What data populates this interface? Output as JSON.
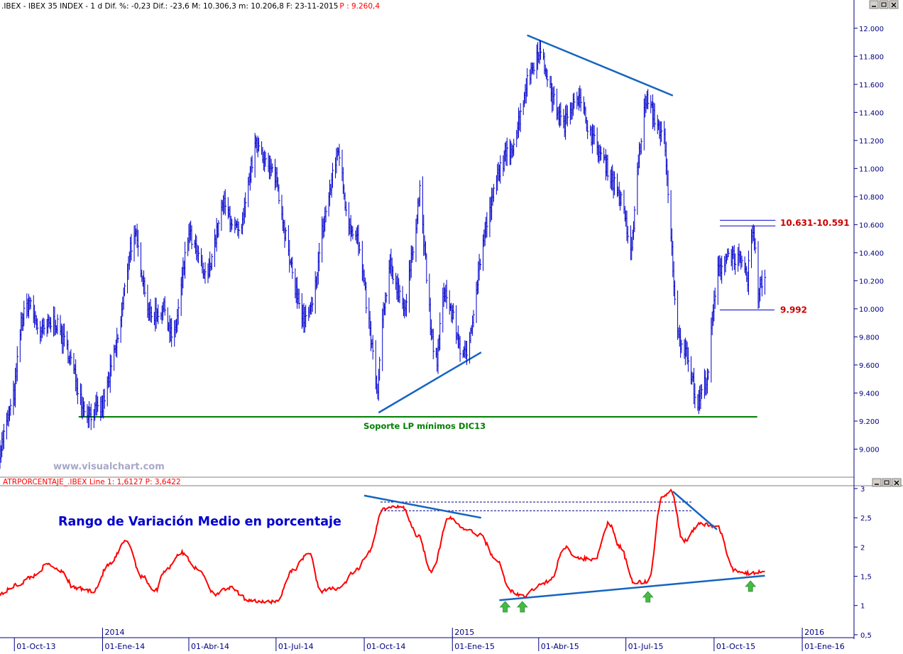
{
  "header": {
    "price_info": ".IBEX - IBEX 35 INDEX - 1 d  Dif. %: -0,23  Dif.: -23,6  M: 10.306,3  m: 10.206,8  F: 23-11-2015 ",
    "price_last": "P : 9.260,4",
    "atr_info": "ATRPORCENTAJE_.IBEX Line 1: 1,6127  P: 3,6422"
  },
  "watermark": "www.visualchart.com",
  "window_buttons": [
    "minimize-icon",
    "restore-icon",
    "close-icon"
  ],
  "colors": {
    "price": "#0000cc",
    "atr": "#ff0000",
    "trend": "#1565c0",
    "support": "#008000",
    "label_red": "#cc0000",
    "axis": "#000080"
  },
  "chart_data": [
    {
      "type": "line",
      "title": "IBEX 35 INDEX - 1 d",
      "ylim": [
        8800,
        12100
      ],
      "ytick_labels": [
        "9.000",
        "9.200",
        "9.400",
        "9.600",
        "9.800",
        "10.000",
        "10.200",
        "10.400",
        "10.600",
        "10.800",
        "11.000",
        "11.200",
        "11.400",
        "11.600",
        "11.800",
        "12.000"
      ],
      "ytick_values": [
        9000,
        9200,
        9400,
        9600,
        9800,
        10000,
        10200,
        10400,
        10600,
        10800,
        11000,
        11200,
        11400,
        11600,
        11800,
        12000
      ],
      "x_start": "2013-09-16",
      "x_end": "2016-02-24",
      "series": [
        {
          "x": [
            "2013-09-16",
            "2013-10-01",
            "2013-10-08",
            "2013-10-16",
            "2013-10-28",
            "2013-11-12",
            "2013-11-26",
            "2013-12-12",
            "2013-12-19",
            "2014-01-01",
            "2014-01-18",
            "2014-01-30",
            "2014-02-05",
            "2014-02-19",
            "2014-03-07",
            "2014-03-16",
            "2014-04-01",
            "2014-04-19",
            "2014-05-07",
            "2014-05-25",
            "2014-06-07",
            "2014-06-13",
            "2014-06-22",
            "2014-07-01",
            "2014-07-16",
            "2014-07-30",
            "2014-08-08",
            "2014-08-18",
            "2014-09-04",
            "2014-09-13",
            "2014-09-24",
            "2014-10-05",
            "2014-10-15",
            "2014-10-19",
            "2014-10-28",
            "2014-11-13",
            "2014-11-28",
            "2014-12-10",
            "2014-12-16",
            "2014-12-23",
            "2015-01-01",
            "2015-01-10",
            "2015-01-16",
            "2015-02-01",
            "2015-02-19",
            "2015-03-07",
            "2015-03-19",
            "2015-04-01",
            "2015-04-11",
            "2015-04-13",
            "2015-04-27",
            "2015-05-10",
            "2015-05-28",
            "2015-06-12",
            "2015-06-25",
            "2015-07-07",
            "2015-07-13",
            "2015-07-22",
            "2015-08-04",
            "2015-08-10",
            "2015-08-18",
            "2015-08-24",
            "2015-09-03",
            "2015-09-13",
            "2015-09-25",
            "2015-09-29",
            "2015-10-04",
            "2015-10-16",
            "2015-10-26",
            "2015-11-05",
            "2015-11-08",
            "2015-11-13",
            "2015-11-16",
            "2015-11-23"
          ],
          "values": [
            8990,
            9400,
            9900,
            10050,
            9820,
            9920,
            9700,
            9300,
            9250,
            9300,
            9820,
            10450,
            10500,
            9950,
            10000,
            9750,
            10550,
            10200,
            10750,
            10500,
            11100,
            11200,
            11000,
            10950,
            10300,
            9900,
            10000,
            10550,
            11150,
            10650,
            10500,
            9950,
            9380,
            9850,
            10300,
            10000,
            10850,
            9800,
            9620,
            10150,
            9950,
            9700,
            9650,
            10450,
            11000,
            11200,
            11600,
            11850,
            11650,
            11550,
            11300,
            11550,
            11200,
            11000,
            10800,
            10400,
            11000,
            11500,
            11300,
            11200,
            10400,
            9800,
            9700,
            9300,
            9550,
            9900,
            10250,
            10400,
            10350,
            10200,
            10550,
            10450,
            10100,
            10250
          ]
        }
      ],
      "annotations": [
        "10.631-10.591",
        "9.992",
        "Soporte LP mínimos DIC13"
      ],
      "level_lines": [
        10631,
        10591,
        9992
      ],
      "support_level": 9230,
      "trendlines": [
        {
          "from": [
            "2015-03-20",
            11950
          ],
          "to": [
            "2015-08-19",
            11520
          ]
        },
        {
          "from": [
            "2014-10-16",
            9260
          ],
          "to": [
            "2015-01-31",
            9690
          ]
        }
      ],
      "xtick_labels": [
        "01-Oct-13",
        "01-Ene-14",
        "01-Abr-14",
        "01-Jul-14",
        "01-Oct-14",
        "01-Ene-15",
        "01-Abr-15",
        "01-Jul-15",
        "01-Oct-15",
        "01-Ene-16"
      ],
      "xtick_values": [
        "2013-10-01",
        "2014-01-01",
        "2014-04-01",
        "2014-07-01",
        "2014-10-01",
        "2015-01-01",
        "2015-04-01",
        "2015-07-01",
        "2015-10-01",
        "2016-01-01"
      ],
      "year_labels": [
        "2014",
        "2015",
        "2016"
      ],
      "year_values": [
        "2014-01-01",
        "2015-01-01",
        "2016-01-01"
      ]
    },
    {
      "type": "line",
      "title": "ATRPORCENTAJE_.IBEX",
      "annotation": "Rango de Variación Medio en porcentaje",
      "ylim": [
        0.45,
        3.0
      ],
      "ytick_labels": [
        "0,5",
        "1",
        "1,5",
        "2",
        "2,5",
        "3"
      ],
      "ytick_values": [
        0.5,
        1,
        1.5,
        2,
        2.5,
        3
      ],
      "series": [
        {
          "name": "Line 1",
          "x": [
            "2013-09-16",
            "2013-10-04",
            "2013-10-20",
            "2013-11-05",
            "2013-11-19",
            "2013-12-02",
            "2013-12-22",
            "2014-01-08",
            "2014-01-26",
            "2014-02-11",
            "2014-02-25",
            "2014-03-07",
            "2014-03-24",
            "2014-04-12",
            "2014-04-28",
            "2014-05-14",
            "2014-06-02",
            "2014-06-19",
            "2014-07-02",
            "2014-07-18",
            "2014-08-04",
            "2014-08-17",
            "2014-09-04",
            "2014-09-23",
            "2014-10-06",
            "2014-10-20",
            "2014-11-09",
            "2014-11-26",
            "2014-12-10",
            "2014-12-29",
            "2015-01-15",
            "2015-01-30",
            "2015-02-15",
            "2015-03-03",
            "2015-03-15",
            "2015-04-03",
            "2015-04-14",
            "2015-04-28",
            "2015-05-13",
            "2015-05-30",
            "2015-06-13",
            "2015-06-25",
            "2015-07-09",
            "2015-07-24",
            "2015-08-08",
            "2015-08-17",
            "2015-08-30",
            "2015-09-17",
            "2015-10-04",
            "2015-10-22",
            "2015-11-08",
            "2015-11-23"
          ],
          "values": [
            1.2,
            1.35,
            1.5,
            1.7,
            1.6,
            1.3,
            1.25,
            1.7,
            2.1,
            1.5,
            1.25,
            1.6,
            1.9,
            1.6,
            1.2,
            1.3,
            1.1,
            1.05,
            1.08,
            1.6,
            1.9,
            1.25,
            1.3,
            1.6,
            1.9,
            2.65,
            2.7,
            2.2,
            1.6,
            2.5,
            2.3,
            2.2,
            1.8,
            1.25,
            1.15,
            1.35,
            1.45,
            2.0,
            1.8,
            1.8,
            2.4,
            2.0,
            1.4,
            1.4,
            2.85,
            2.95,
            2.1,
            2.4,
            2.35,
            1.6,
            1.55,
            1.6
          ]
        }
      ],
      "level_lines": [
        2.77,
        2.62
      ],
      "trendlines": [
        {
          "from": [
            "2015-02-19",
            1.09
          ],
          "to": [
            "2015-11-23",
            1.51
          ]
        },
        {
          "from": [
            "2014-10-01",
            2.88
          ],
          "to": [
            "2015-01-31",
            2.5
          ]
        },
        {
          "from": [
            "2015-08-19",
            2.95
          ],
          "to": [
            "2015-10-04",
            2.3
          ]
        }
      ],
      "arrows_at": [
        "2015-02-25",
        "2015-03-15",
        "2015-07-24",
        "2015-11-08"
      ]
    }
  ]
}
